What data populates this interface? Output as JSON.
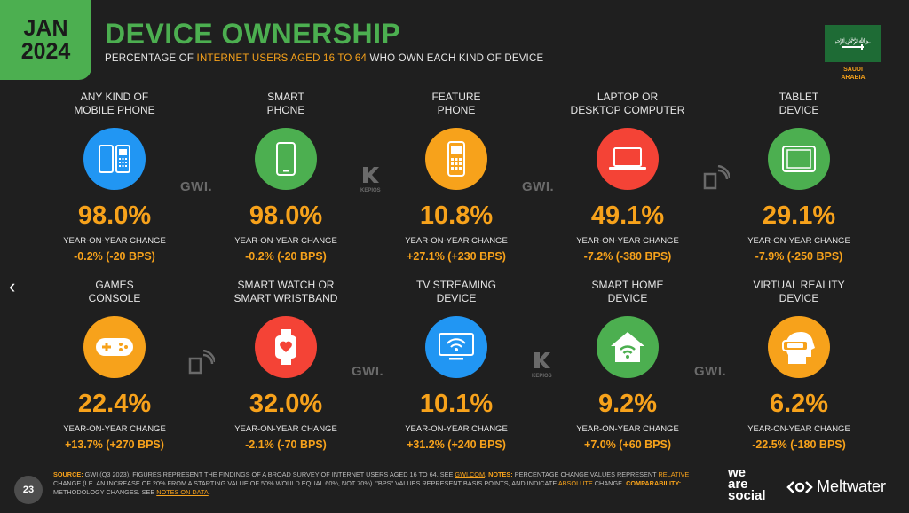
{
  "header": {
    "month": "JAN",
    "year": "2024",
    "title": "DEVICE OWNERSHIP",
    "subtitle_pre": "PERCENTAGE OF ",
    "subtitle_highlight": "INTERNET USERS AGED 16 TO 64",
    "subtitle_post": " WHO OWN EACH KIND OF DEVICE"
  },
  "country": {
    "line1": "SAUDI",
    "line2": "ARABIA"
  },
  "colors": {
    "green": "#4caf50",
    "orange": "#f7a21b",
    "blue": "#2196f3",
    "red": "#f44336"
  },
  "cards": [
    {
      "label1": "ANY KIND OF",
      "label2": "MOBILE PHONE",
      "icon": "mobile-phones-icon",
      "color": "#2196f3",
      "value": "98.0%",
      "yoy_label": "YEAR-ON-YEAR CHANGE",
      "yoy": "-0.2% (-20 BPS)"
    },
    {
      "label1": "SMART",
      "label2": "PHONE",
      "icon": "smartphone-icon",
      "color": "#4caf50",
      "value": "98.0%",
      "yoy_label": "YEAR-ON-YEAR CHANGE",
      "yoy": "-0.2% (-20 BPS)"
    },
    {
      "label1": "FEATURE",
      "label2": "PHONE",
      "icon": "feature-phone-icon",
      "color": "#f7a21b",
      "value": "10.8%",
      "yoy_label": "YEAR-ON-YEAR CHANGE",
      "yoy": "+27.1% (+230 BPS)"
    },
    {
      "label1": "LAPTOP OR",
      "label2": "DESKTOP COMPUTER",
      "icon": "laptop-icon",
      "color": "#f44336",
      "value": "49.1%",
      "yoy_label": "YEAR-ON-YEAR CHANGE",
      "yoy": "-7.2% (-380 BPS)"
    },
    {
      "label1": "TABLET",
      "label2": "DEVICE",
      "icon": "tablet-icon",
      "color": "#4caf50",
      "value": "29.1%",
      "yoy_label": "YEAR-ON-YEAR CHANGE",
      "yoy": "-7.9% (-250 BPS)"
    },
    {
      "label1": "GAMES",
      "label2": "CONSOLE",
      "icon": "gamepad-icon",
      "color": "#f7a21b",
      "value": "22.4%",
      "yoy_label": "YEAR-ON-YEAR CHANGE",
      "yoy": "+13.7% (+270 BPS)"
    },
    {
      "label1": "SMART WATCH OR",
      "label2": "SMART WRISTBAND",
      "icon": "smartwatch-icon",
      "color": "#f44336",
      "value": "32.0%",
      "yoy_label": "YEAR-ON-YEAR CHANGE",
      "yoy": "-2.1% (-70 BPS)"
    },
    {
      "label1": "TV STREAMING",
      "label2": "DEVICE",
      "icon": "tv-streaming-icon",
      "color": "#2196f3",
      "value": "10.1%",
      "yoy_label": "YEAR-ON-YEAR CHANGE",
      "yoy": "+31.2% (+240 BPS)"
    },
    {
      "label1": "SMART HOME",
      "label2": "DEVICE",
      "icon": "smart-home-icon",
      "color": "#4caf50",
      "value": "9.2%",
      "yoy_label": "YEAR-ON-YEAR CHANGE",
      "yoy": "+7.0% (+60 BPS)"
    },
    {
      "label1": "VIRTUAL REALITY",
      "label2": "DEVICE",
      "icon": "vr-headset-icon",
      "color": "#f7a21b",
      "value": "6.2%",
      "yoy_label": "YEAR-ON-YEAR CHANGE",
      "yoy": "-22.5% (-180 BPS)"
    }
  ],
  "logos": {
    "gwi": "GWI.",
    "kepios": "KEPIOS"
  },
  "footer": {
    "page_number": "23",
    "source_key": "SOURCE:",
    "source_text": " GWI (Q3 2023). FIGURES REPRESENT THE FINDINGS OF A BROAD SURVEY OF INTERNET USERS AGED 16 TO 64. SEE ",
    "source_link": "GWI.COM",
    "notes_key": ". NOTES:",
    "notes_text": " PERCENTAGE CHANGE VALUES REPRESENT ",
    "relative": "RELATIVE",
    "notes_text2": " CHANGE (I.E. AN INCREASE OF 20% FROM A STARTING VALUE OF 50% WOULD EQUAL 60%, NOT 70%). \"BPS\" VALUES REPRESENT BASIS POINTS, AND INDICATE ",
    "absolute": "ABSOLUTE",
    "notes_text3": " CHANGE. ",
    "comparability_key": "COMPARABILITY:",
    "comparability_text": " METHODOLOGY CHANGES. SEE ",
    "notes_link": "NOTES ON DATA",
    "end": ".",
    "brand1": "we",
    "brand2": "are",
    "brand3": "social",
    "brand4": "Meltwater"
  },
  "nav": {
    "prev": "‹"
  }
}
